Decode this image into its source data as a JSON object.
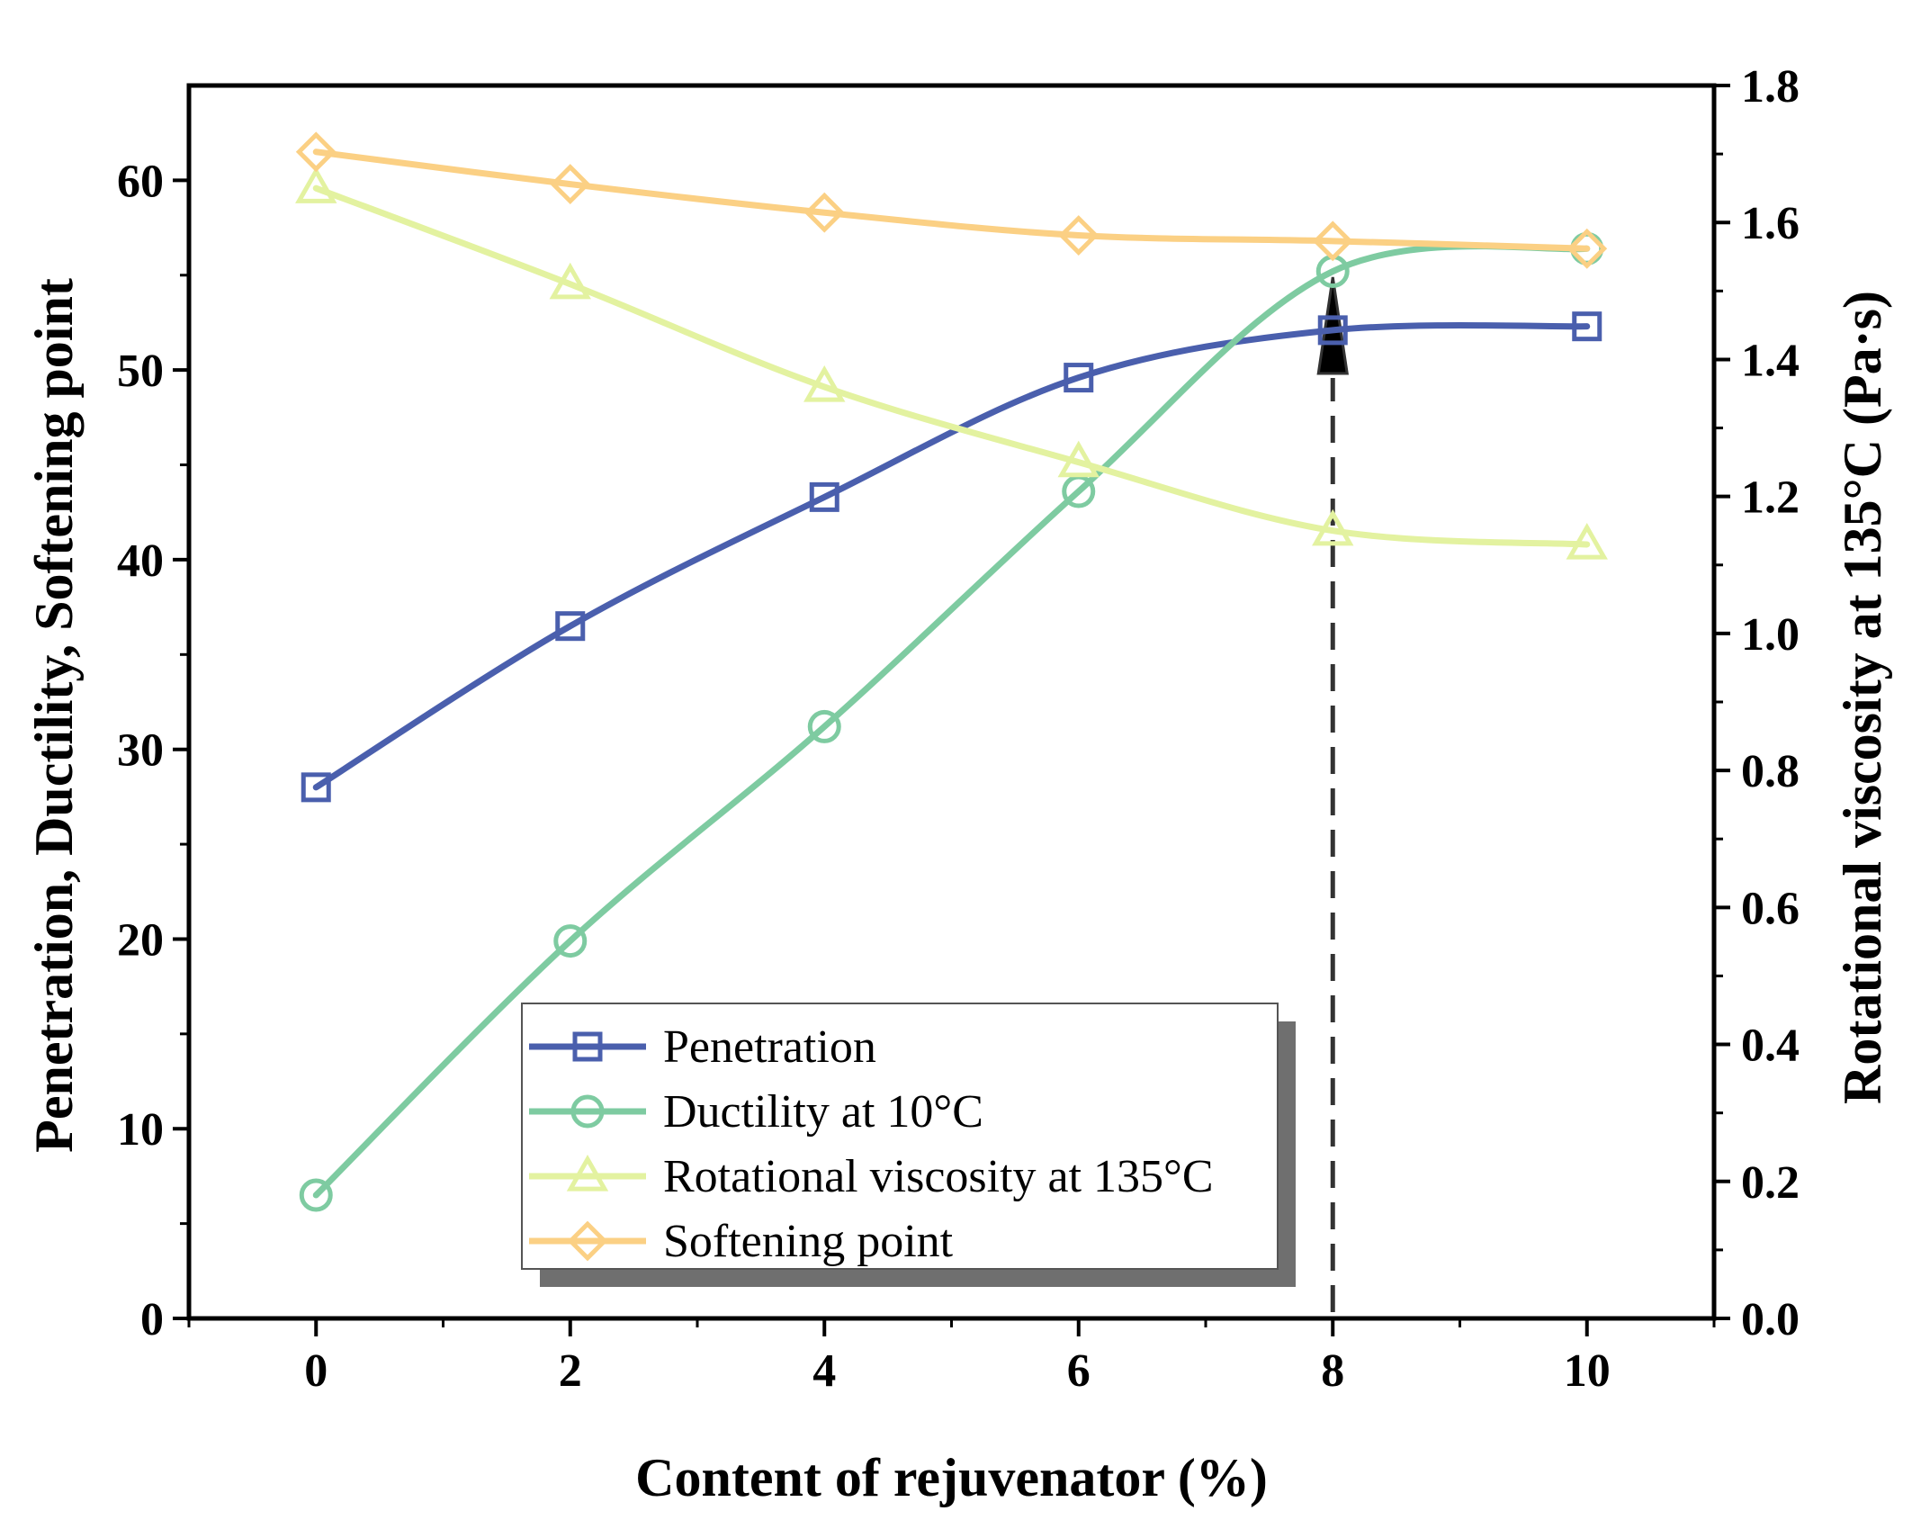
{
  "chart_data": {
    "type": "line",
    "xlabel": "Content of rejuvenator (%)",
    "ylabel_left": "Penetration,  Ductility,  Softening point",
    "ylabel_right": "Rotational viscosity at 135°C (Pa·s)",
    "x": [
      0,
      2,
      4,
      6,
      8,
      10
    ],
    "xlim": [
      -1,
      11
    ],
    "ylim_left": [
      0,
      65
    ],
    "ylim_right": [
      0,
      1.8
    ],
    "x_ticks": [
      "0",
      "2",
      "4",
      "6",
      "8",
      "10"
    ],
    "y_ticks_left": [
      "0",
      "10",
      "20",
      "30",
      "40",
      "50",
      "60"
    ],
    "y_ticks_right": [
      "0.0",
      "0.2",
      "0.4",
      "0.6",
      "0.8",
      "1.0",
      "1.2",
      "1.4",
      "1.6",
      "1.8"
    ],
    "grid": false,
    "legend_position": "bottom-center",
    "series": [
      {
        "name": "Penetration",
        "axis": "left",
        "marker": "square",
        "color": "#4a5fad",
        "values": [
          28.0,
          36.5,
          43.3,
          49.6,
          52.1,
          52.3
        ]
      },
      {
        "name": "Ductility at 10°C",
        "axis": "left",
        "marker": "circle",
        "color": "#7ecba1",
        "values": [
          6.5,
          19.9,
          31.2,
          43.6,
          55.2,
          56.4
        ]
      },
      {
        "name": "Rotational viscosity at 135°C",
        "axis": "right",
        "marker": "triangle",
        "color": "#e3f2a0",
        "values": [
          1.65,
          1.51,
          1.36,
          1.25,
          1.15,
          1.13
        ]
      },
      {
        "name": "Softening point",
        "axis": "left",
        "marker": "diamond",
        "color": "#fbd084",
        "values": [
          61.5,
          59.8,
          58.3,
          57.1,
          56.8,
          56.4
        ]
      }
    ],
    "annotation": {
      "type": "dashed-vertical-line-with-arrow",
      "x": 8
    }
  }
}
